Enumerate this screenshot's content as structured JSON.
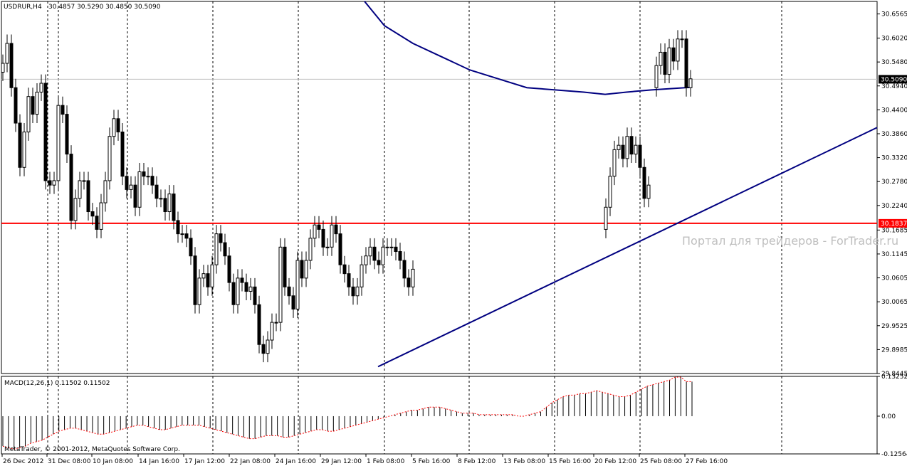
{
  "header": {
    "symbol": "USDRUR,H4",
    "ohlc": "30.4857 30.5290 30.4850 30.5090"
  },
  "macd_header": "MACD(12,26,1) 0.11502 0.11502",
  "copyright": "MetaTrader, © 2001-2012, MetaQuotes Software Corp.",
  "watermark": "Портал для трейдеров - ForTrader.ru",
  "colors": {
    "background": "#ffffff",
    "bull": "#ffffff",
    "bear": "#000000",
    "ma_line": "#000080",
    "trendline": "#000080",
    "hline": "#ff0000",
    "macd_hist": "#000000",
    "macd_signal": "#ff0000"
  },
  "chart_data": [
    {
      "type": "candlestick",
      "ylim": [
        29.8445,
        30.6848
      ],
      "y_ticks": [
        "30.6565",
        "30.6020",
        "30.5480",
        "30.4940",
        "30.4400",
        "30.3860",
        "30.3320",
        "30.2780",
        "30.2240",
        "30.1685",
        "30.1145",
        "30.0605",
        "30.0065",
        "29.9525",
        "29.8985",
        "29.8445"
      ],
      "current_price": "30.5090",
      "hline_price": "30.1837",
      "x_labels": [
        "26 Dec 2012",
        "31 Dec 08:00",
        "10 Jan 08:00",
        "14 Jan 16:00",
        "17 Jan 12:00",
        "22 Jan 08:00",
        "24 Jan 16:00",
        "29 Jan 12:00",
        "1 Feb 08:00",
        "5 Feb 16:00",
        "8 Feb 12:00",
        "13 Feb 08:00",
        "15 Feb 16:00",
        "20 Feb 12:00",
        "25 Feb 08:00",
        "27 Feb 16:00"
      ],
      "segments": [
        {
          "closes": [
            30.545,
            30.59,
            30.49,
            30.41,
            30.31,
            30.39,
            30.47,
            30.43,
            30.48,
            30.5,
            30.28,
            30.27,
            30.28,
            30.45,
            30.43,
            30.34,
            30.19,
            30.24,
            30.28,
            30.28,
            30.21,
            30.2,
            30.17,
            30.23,
            30.28,
            30.38,
            30.42,
            30.39,
            30.29,
            30.26,
            30.27,
            30.22,
            30.3,
            30.29,
            30.29,
            30.27,
            30.24,
            30.24,
            30.21,
            30.25,
            30.19,
            30.16,
            30.16,
            30.15,
            30.11,
            30.0,
            30.06,
            30.07,
            30.04,
            30.09,
            30.16,
            30.14,
            30.11,
            30.05,
            30.0,
            30.06,
            30.05,
            30.03,
            30.04,
            30.0,
            29.91,
            29.89,
            29.92,
            29.96,
            29.96,
            30.13,
            30.04,
            30.02,
            29.99,
            30.1,
            30.06,
            30.1,
            30.15,
            30.18,
            30.17,
            30.13,
            30.13,
            30.18,
            30.16,
            30.09,
            30.07,
            30.04,
            30.02,
            30.04,
            30.09,
            30.11,
            30.13,
            30.1,
            30.09,
            30.13,
            30.13,
            30.13,
            30.12,
            30.1,
            30.06,
            30.04,
            30.08
          ]
        },
        {
          "closes": [
            30.22,
            30.29,
            30.35,
            30.36,
            30.33,
            30.38,
            30.34,
            30.36,
            30.31,
            30.24,
            30.27
          ]
        },
        {
          "closes": [
            30.54,
            30.57,
            30.52,
            30.58,
            30.55,
            30.6,
            30.6,
            30.49,
            30.51
          ]
        }
      ],
      "ma": [
        {
          "x": 30.68,
          "y": null,
          "v": 30.685
        },
        {
          "v": 30.63
        },
        {
          "v": 30.59
        },
        {
          "v": 30.56
        },
        {
          "v": 30.53
        },
        {
          "v": 30.51
        },
        {
          "v": 30.49
        },
        {
          "v": 30.485
        },
        {
          "v": 30.48
        },
        {
          "v": 30.475
        },
        {
          "v": 30.48
        },
        {
          "v": 30.485
        },
        {
          "v": 30.491
        }
      ],
      "trendline": {
        "from": {
          "v": 29.86
        },
        "to": {
          "v": 30.4
        }
      }
    },
    {
      "type": "bar",
      "name": "MACD(12,26,1)",
      "ylim": [
        -0.12564,
        0.13252
      ],
      "y_ticks": [
        "0.13252",
        "0.00",
        "-0.12564"
      ],
      "values": [
        -0.1,
        -0.105,
        -0.11,
        -0.105,
        -0.1,
        -0.09,
        -0.085,
        -0.08,
        -0.07,
        -0.06,
        -0.05,
        -0.045,
        -0.04,
        -0.04,
        -0.045,
        -0.05,
        -0.055,
        -0.06,
        -0.06,
        -0.055,
        -0.05,
        -0.045,
        -0.04,
        -0.035,
        -0.03,
        -0.03,
        -0.035,
        -0.04,
        -0.045,
        -0.045,
        -0.04,
        -0.035,
        -0.03,
        -0.03,
        -0.03,
        -0.03,
        -0.035,
        -0.04,
        -0.045,
        -0.05,
        -0.055,
        -0.06,
        -0.065,
        -0.07,
        -0.075,
        -0.075,
        -0.07,
        -0.065,
        -0.065,
        -0.065,
        -0.07,
        -0.07,
        -0.065,
        -0.06,
        -0.055,
        -0.05,
        -0.045,
        -0.045,
        -0.05,
        -0.05,
        -0.045,
        -0.04,
        -0.035,
        -0.03,
        -0.025,
        -0.02,
        -0.015,
        -0.01,
        -0.005,
        0.0,
        0.005,
        0.01,
        0.015,
        0.02,
        0.02,
        0.025,
        0.03,
        0.03,
        0.03,
        0.025,
        0.02,
        0.015,
        0.01,
        0.01,
        0.01,
        0.005,
        0.005,
        0.005,
        0.005,
        0.005,
        0.005,
        0.005,
        0.0,
        0.0,
        0.005,
        0.01,
        0.015,
        0.03,
        0.045,
        0.055,
        0.065,
        0.07,
        0.07,
        0.075,
        0.075,
        0.08,
        0.085,
        0.08,
        0.075,
        0.07,
        0.065,
        0.065,
        0.07,
        0.08,
        0.09,
        0.1,
        0.105,
        0.11,
        0.115,
        0.12,
        0.13,
        0.13,
        0.115,
        0.115
      ]
    }
  ]
}
